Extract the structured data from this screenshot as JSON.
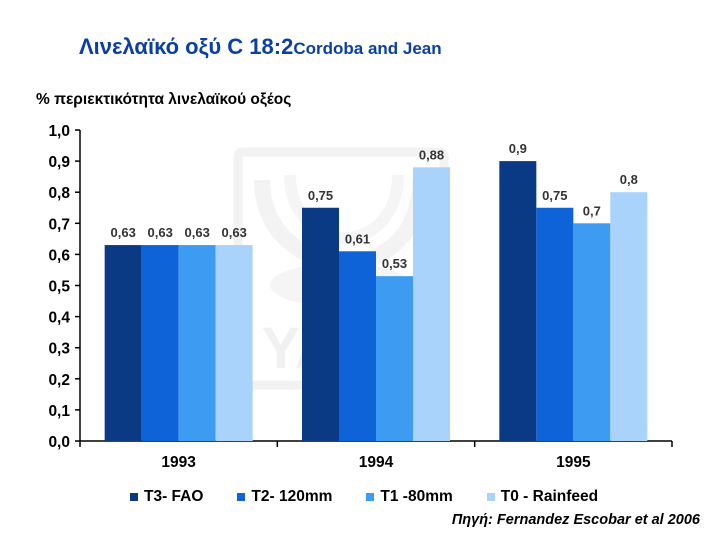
{
  "title": {
    "main": "Λινελαϊκό οξύ C 18:2",
    "sub": "Cordoba and Jean"
  },
  "chart_data": {
    "type": "bar",
    "title": "Λινελαϊκό οξύ C 18:2Cordoba and Jean",
    "ylabel": "% περιεκτικότητα λινελαϊκού οξέος",
    "xlabel": "",
    "ylim": [
      0,
      1.0
    ],
    "yticks": [
      "0,0",
      "0,1",
      "0,2",
      "0,3",
      "0,4",
      "0,5",
      "0,6",
      "0,7",
      "0,8",
      "0,9",
      "1,0"
    ],
    "grid": false,
    "legend_position": "bottom",
    "categories": [
      "1993",
      "1994",
      "1995"
    ],
    "series": [
      {
        "name": "T3- FAO",
        "color": "#0b3a84",
        "values": [
          0.63,
          0.75,
          0.9
        ],
        "labels": [
          "0,63",
          "0,75",
          "0,9"
        ]
      },
      {
        "name": "T2- 120mm",
        "color": "#0f63d8",
        "values": [
          0.63,
          0.61,
          0.75
        ],
        "labels": [
          "0,63",
          "0,61",
          "0,75"
        ]
      },
      {
        "name": "T1 -80mm",
        "color": "#3d9cf2",
        "values": [
          0.63,
          0.53,
          0.7
        ],
        "labels": [
          "0,63",
          "0,53",
          "0,7"
        ]
      },
      {
        "name": "T0 - Rainfeed",
        "color": "#a9d3fa",
        "values": [
          0.63,
          0.88,
          0.8
        ],
        "labels": [
          "0,63",
          "0,88",
          "0,8"
        ]
      }
    ]
  },
  "source": "Πηγή: Fernandez Escobar et al 2006",
  "watermark": "YARA"
}
